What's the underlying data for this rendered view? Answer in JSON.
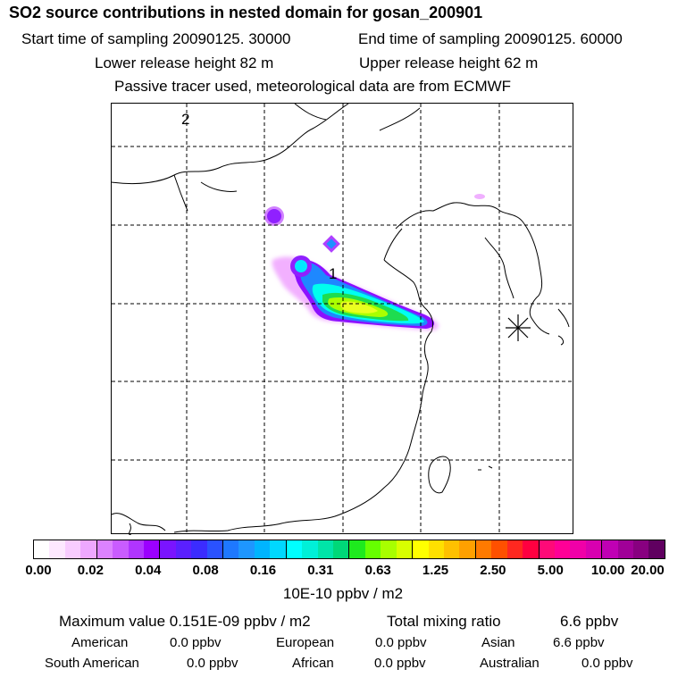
{
  "header": {
    "title": "SO2 source contributions in nested domain for gosan_200901",
    "start_label": "Start time of sampling 20090125. 30000",
    "end_label": "End time of sampling 20090125. 60000",
    "lower_height": "Lower release height   82 m",
    "upper_height": "Upper release height   62 m",
    "tracer_note": "Passive tracer used, meteorological data are from ECMWF"
  },
  "map": {
    "label_1": "1",
    "label_2": "2",
    "receptor_marker": "gosan receptor (asterisk)",
    "coast_color": "#000000",
    "grid_style": "dashed"
  },
  "colorbar": {
    "colors": [
      "#ffffff",
      "#fde8ff",
      "#f8ccff",
      "#eea8ff",
      "#dc82ff",
      "#c95cff",
      "#b035ff",
      "#9b00ff",
      "#7a14ff",
      "#5a20ff",
      "#3b2cff",
      "#2a52ff",
      "#1e78ff",
      "#1e96ff",
      "#00b4ff",
      "#00d8ff",
      "#00ffff",
      "#00f0d8",
      "#00e4a8",
      "#00d878",
      "#1eea1e",
      "#66ff00",
      "#a8ff00",
      "#d8ff00",
      "#ffff00",
      "#ffe000",
      "#ffc000",
      "#ffa000",
      "#ff7a00",
      "#ff5000",
      "#ff2820",
      "#ff0040",
      "#ff0a78",
      "#ff0096",
      "#f000a8",
      "#d800b0",
      "#c000b4",
      "#a00098",
      "#880080",
      "#600060"
    ],
    "ticks": [
      "0.00",
      "0.02",
      "0.04",
      "0.08",
      "0.16",
      "0.31",
      "0.63",
      "1.25",
      "2.50",
      "5.00",
      "10.00",
      "20.00"
    ],
    "units": "10E-10 ppbv / m2"
  },
  "summary": {
    "max_value": "Maximum value  0.151E-09 ppbv / m2",
    "total_mixing": "Total mixing ratio",
    "total_value": "6.6 ppbv",
    "regions": [
      {
        "name": "American",
        "value": "0.0 ppbv"
      },
      {
        "name": "European",
        "value": "0.0 ppbv"
      },
      {
        "name": "Asian",
        "value": "6.6 ppbv"
      },
      {
        "name": "South American",
        "value": "0.0 ppbv"
      },
      {
        "name": "African",
        "value": "0.0 ppbv"
      },
      {
        "name": "Australian",
        "value": "0.0 ppbv"
      }
    ]
  }
}
